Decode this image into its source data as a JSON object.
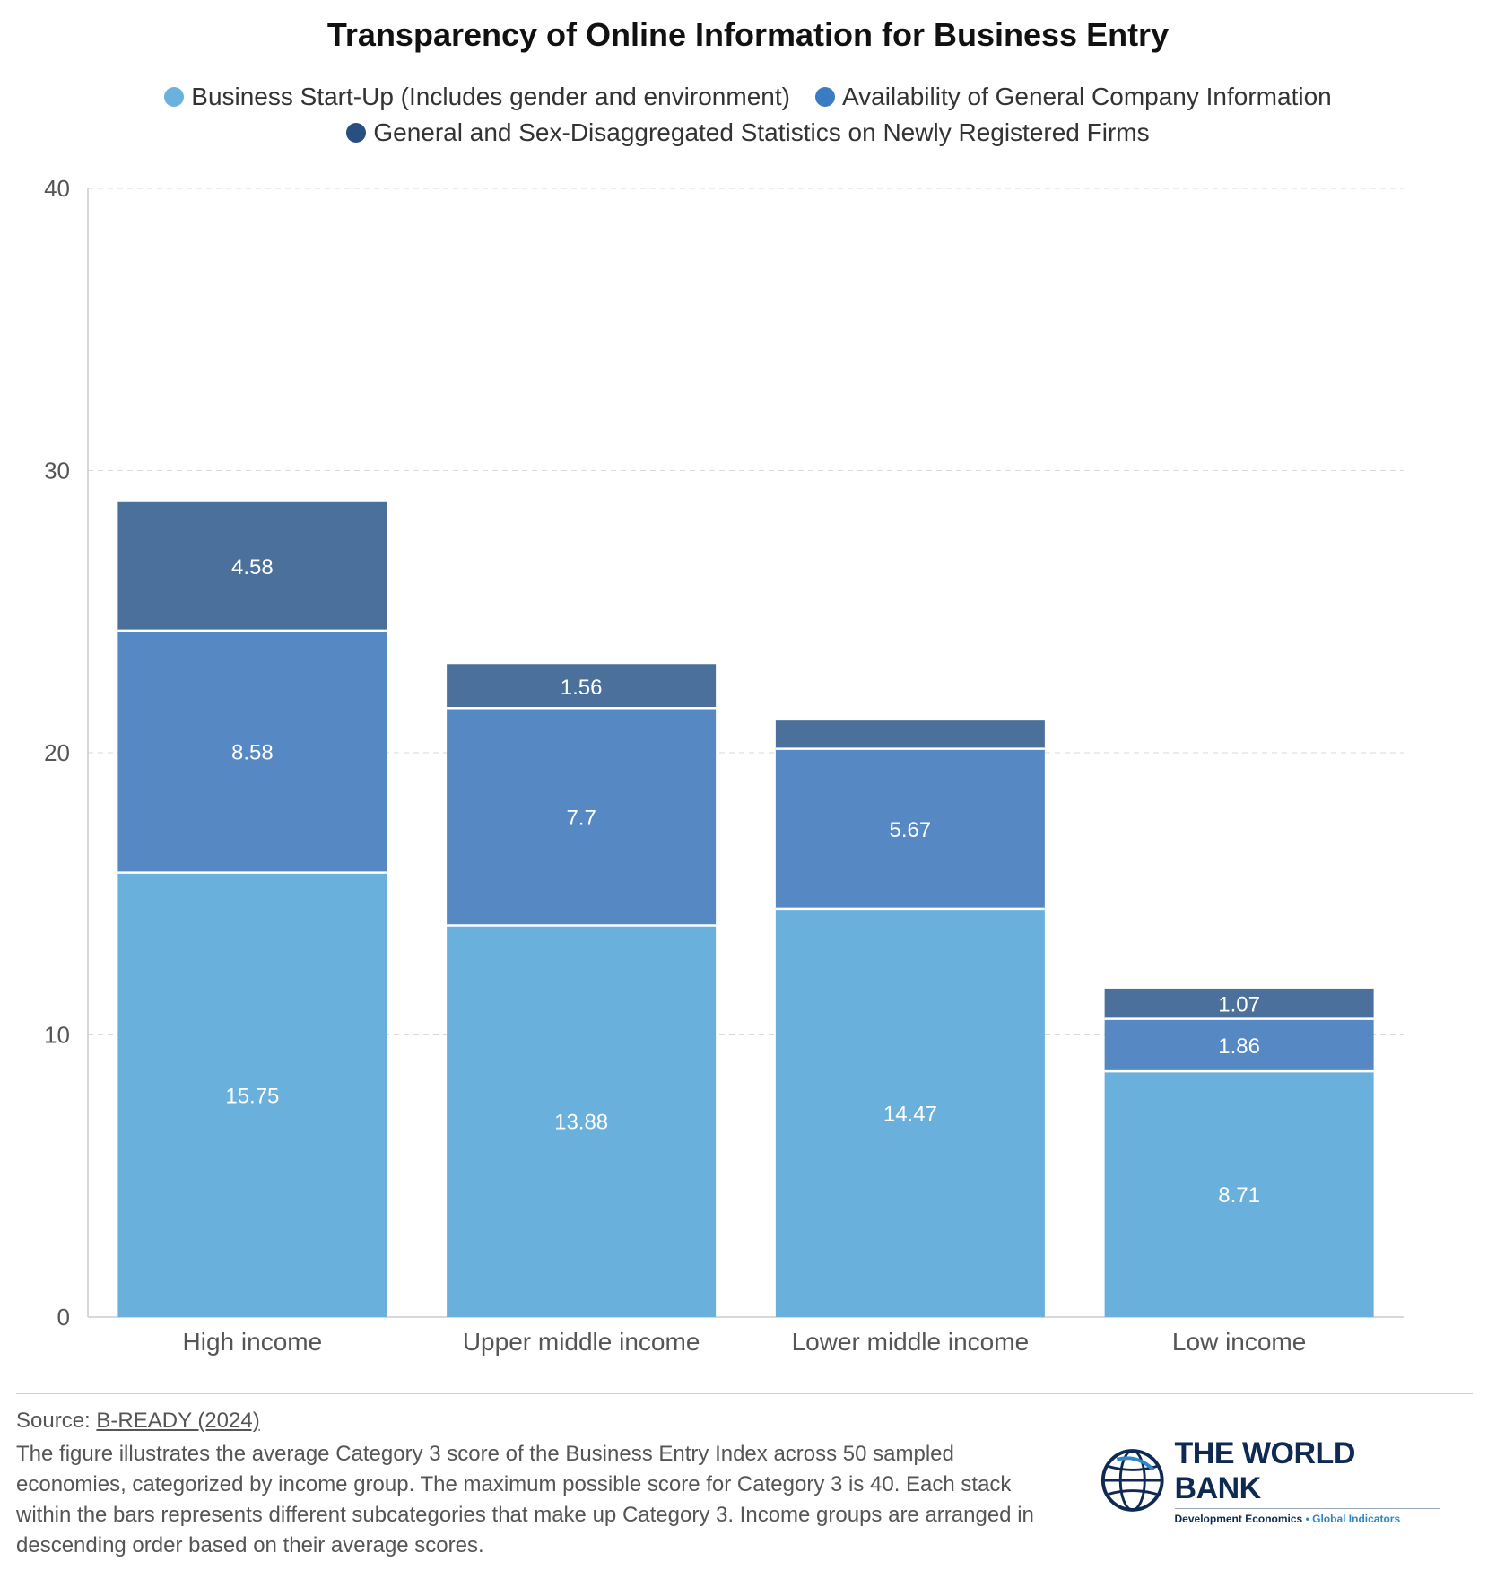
{
  "page": {
    "title": "Transparency of Online Information for Business Entry",
    "source_prefix": "Source: ",
    "source_link": "B-READY (2024)",
    "note": "The figure illustrates the average Category 3 score of the Business Entry Index across 50 sampled economies, categorized by income group. The maximum possible score for Category 3 is 40. Each stack within the bars represents different subcategories that make up Category 3. Income groups are arranged in descending order based on their average scores.",
    "logo_name": "THE WORLD BANK",
    "logo_sub_main": "Development Economics",
    "logo_sub_sep": " • ",
    "logo_sub_accent": "Global Indicators"
  },
  "legend": [
    {
      "label": "Business Start-Up (Includes gender and environment)",
      "color": "#6bb1de"
    },
    {
      "label": "Availability of General Company Information",
      "color": "#3b7bc4"
    },
    {
      "label": "General and Sex-Disaggregated Statistics on Newly Registered Firms",
      "color": "#284f82"
    }
  ],
  "chart_data": {
    "type": "bar",
    "stacked": true,
    "title": "Transparency of Online Information for Business Entry",
    "xlabel": "",
    "ylabel": "",
    "ylim": [
      0,
      40
    ],
    "yticks": [
      0,
      10,
      20,
      30,
      40
    ],
    "grid": true,
    "legend_position": "top",
    "categories": [
      "High income",
      "Upper middle income",
      "Lower middle income",
      "Low income"
    ],
    "series": [
      {
        "name": "Business Start-Up (Includes gender and environment)",
        "color": "#6ab0dd",
        "values": [
          15.75,
          13.88,
          14.47,
          8.71
        ],
        "labels": [
          "15.75",
          "13.88",
          "14.47",
          "8.71"
        ]
      },
      {
        "name": "Availability of General Company Information",
        "color": "#5688c4",
        "values": [
          8.58,
          7.7,
          5.67,
          1.86
        ],
        "labels": [
          "8.58",
          "7.7",
          "5.67",
          "1.86"
        ]
      },
      {
        "name": "General and Sex-Disaggregated Statistics on Newly Registered Firms",
        "color": "#4b709b",
        "values": [
          4.58,
          1.56,
          1.0,
          1.07
        ],
        "labels": [
          "4.58",
          "1.56",
          "",
          "1.07"
        ]
      }
    ]
  }
}
